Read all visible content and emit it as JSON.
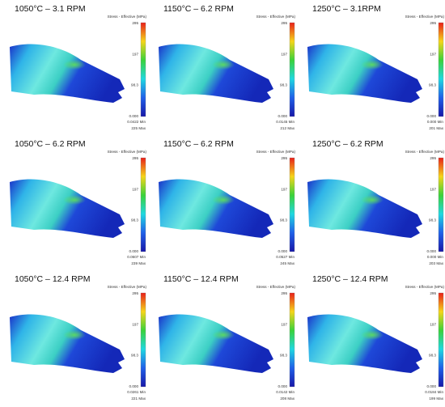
{
  "panels": [
    {
      "title": "1050°C – 3.1 RPM",
      "scale_label": "Stress - Effective (MPa)",
      "scale_ticks": [
        "295",
        "197",
        "98.3",
        "0.000"
      ],
      "min": "0.0422  Min",
      "max": "225  Max"
    },
    {
      "title": "1150°C – 6.2 RPM",
      "scale_label": "Stress - Effective (MPa)",
      "scale_ticks": [
        "295",
        "197",
        "98.3",
        "0.000"
      ],
      "min": "0.0145  Min",
      "max": "212  Max"
    },
    {
      "title": "1250°C – 3.1RPM",
      "scale_label": "Stress - Effective (MPa)",
      "scale_ticks": [
        "295",
        "197",
        "98.3",
        "0.000"
      ],
      "min": "0.000  Min",
      "max": "201  Max"
    },
    {
      "title": "1050°C – 6.2 RPM",
      "scale_label": "Stress - Effective (MPa)",
      "scale_ticks": [
        "295",
        "197",
        "98.3",
        "0.000"
      ],
      "min": "0.0607  Min",
      "max": "239  Max"
    },
    {
      "title": "1150°C – 6.2 RPM",
      "scale_label": "Stress - Effective (MPa)",
      "scale_ticks": [
        "295",
        "197",
        "98.3",
        "0.000"
      ],
      "min": "0.0527  Min",
      "max": "245  Max"
    },
    {
      "title": "1250°C – 6.2 RPM",
      "scale_label": "Stress - Effective (MPa)",
      "scale_ticks": [
        "295",
        "197",
        "98.3",
        "0.000"
      ],
      "min": "0.000  Min",
      "max": "203  Max"
    },
    {
      "title": "1050°C – 12.4 RPM",
      "scale_label": "Stress - Effective (MPa)",
      "scale_ticks": [
        "295",
        "197",
        "98.3",
        "0.000"
      ],
      "min": "0.0261  Min",
      "max": "221  Max"
    },
    {
      "title": "1150°C – 12.4 RPM",
      "scale_label": "Stress - Effective (MPa)",
      "scale_ticks": [
        "295",
        "197",
        "98.3",
        "0.000"
      ],
      "min": "0.0142  Min",
      "max": "208  Max"
    },
    {
      "title": "1250°C – 12.4 RPM",
      "scale_label": "Stress - Effective (MPa)",
      "scale_ticks": [
        "295",
        "197",
        "98.3",
        "0.000"
      ],
      "min": "0.0184  Min",
      "max": "199  Max"
    }
  ]
}
